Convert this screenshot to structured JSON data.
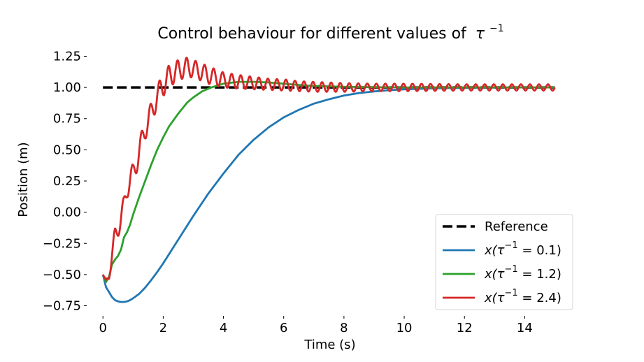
{
  "chart_data": {
    "type": "line",
    "title_prefix": "Control behaviour for different values of",
    "title_math_symbol": "τ",
    "title_math_exponent": "−1",
    "xlabel": "Time (s)",
    "ylabel": "Position (m)",
    "xlim": [
      -0.4,
      15.5
    ],
    "ylim": [
      -0.82,
      1.32
    ],
    "xticks": [
      0,
      2,
      4,
      6,
      8,
      10,
      12,
      14
    ],
    "xtick_labels": [
      "0",
      "2",
      "4",
      "6",
      "8",
      "10",
      "12",
      "14"
    ],
    "yticks": [
      -0.75,
      -0.5,
      -0.25,
      0.0,
      0.25,
      0.5,
      0.75,
      1.0,
      1.25
    ],
    "ytick_labels": [
      "−0.75",
      "−0.50",
      "−0.25",
      "0.00",
      "0.25",
      "0.50",
      "0.75",
      "1.00",
      "1.25"
    ],
    "grid": false,
    "legend_position": "bottom-right",
    "series": [
      {
        "name": "Reference",
        "style": "dashed",
        "color": "#000000",
        "x": [
          0,
          15
        ],
        "y": [
          1.0,
          1.0
        ]
      },
      {
        "name": "x(τ⁻¹ = 0.1)",
        "name_parts": {
          "pre": "x(τ",
          "sup": "−1",
          "post": " = 0.1)"
        },
        "style": "solid",
        "color": "#1f77b4",
        "x": [
          0,
          0.1,
          0.2,
          0.3,
          0.4,
          0.5,
          0.6,
          0.7,
          0.8,
          0.9,
          1.0,
          1.2,
          1.4,
          1.6,
          1.8,
          2.0,
          2.5,
          3.0,
          3.5,
          4.0,
          4.5,
          5.0,
          5.5,
          6.0,
          6.5,
          7.0,
          7.5,
          8.0,
          8.5,
          9.0,
          9.5,
          10.0,
          11.0,
          12.0,
          13.0,
          14.0,
          15.0
        ],
        "y": [
          -0.5,
          -0.6,
          -0.64,
          -0.68,
          -0.705,
          -0.715,
          -0.72,
          -0.72,
          -0.715,
          -0.705,
          -0.69,
          -0.655,
          -0.605,
          -0.545,
          -0.48,
          -0.41,
          -0.22,
          -0.03,
          0.15,
          0.31,
          0.46,
          0.58,
          0.68,
          0.76,
          0.82,
          0.87,
          0.905,
          0.935,
          0.955,
          0.968,
          0.978,
          0.985,
          0.993,
          0.997,
          0.999,
          1.0,
          1.0
        ]
      },
      {
        "name": "x(τ⁻¹ = 1.2)",
        "name_parts": {
          "pre": "x(τ",
          "sup": "−1",
          "post": " = 1.2)"
        },
        "style": "solid",
        "color": "#2ca02c",
        "x": [
          0,
          0.1,
          0.2,
          0.3,
          0.4,
          0.5,
          0.6,
          0.7,
          0.8,
          0.9,
          1.0,
          1.2,
          1.4,
          1.6,
          1.8,
          2.0,
          2.2,
          2.5,
          2.8,
          3.0,
          3.3,
          3.6,
          4.0,
          4.5,
          5.0,
          5.5,
          6.0,
          6.5,
          7.0,
          8.0,
          9.0,
          10.0,
          12.0,
          15.0
        ],
        "y": [
          -0.5,
          -0.56,
          -0.52,
          -0.42,
          -0.38,
          -0.35,
          -0.3,
          -0.2,
          -0.16,
          -0.1,
          -0.02,
          0.12,
          0.25,
          0.38,
          0.5,
          0.6,
          0.69,
          0.79,
          0.88,
          0.92,
          0.97,
          1.0,
          1.03,
          1.045,
          1.045,
          1.04,
          1.03,
          1.02,
          1.012,
          1.005,
          1.002,
          1.0,
          1.0,
          1.0
        ]
      },
      {
        "name": "x(τ⁻¹ = 2.4)",
        "name_parts": {
          "pre": "x(τ",
          "sup": "−1",
          "post": " = 2.4)"
        },
        "style": "solid",
        "color": "#d62728",
        "oscillation_period_s": 0.3,
        "x": [
          0,
          0.1,
          0.2,
          0.3,
          0.4,
          0.5,
          0.6,
          0.7,
          0.8,
          0.9,
          1.0,
          1.2,
          1.4,
          1.6,
          1.8,
          2.0,
          2.2,
          2.5,
          2.8,
          3.0,
          3.3,
          3.6,
          4.0,
          4.5,
          5.0,
          5.5,
          6.0,
          6.5,
          7.0,
          8.0,
          9.0,
          10.0,
          12.0,
          15.0
        ],
        "y": [
          -0.5,
          -0.56,
          -0.5,
          -0.35,
          -0.2,
          -0.12,
          -0.05,
          0.05,
          0.2,
          0.26,
          0.3,
          0.48,
          0.67,
          0.79,
          0.93,
          1.02,
          1.09,
          1.14,
          1.16,
          1.15,
          1.12,
          1.09,
          1.06,
          1.045,
          1.035,
          1.025,
          1.02,
          1.01,
          1.005,
          1.0,
          1.0,
          1.0,
          1.0,
          1.0
        ],
        "amplitude": [
          0.0,
          0.02,
          0.04,
          0.06,
          0.08,
          0.08,
          0.08,
          0.08,
          0.09,
          0.09,
          0.09,
          0.09,
          0.09,
          0.09,
          0.09,
          0.09,
          0.09,
          0.08,
          0.08,
          0.07,
          0.07,
          0.07,
          0.06,
          0.055,
          0.05,
          0.045,
          0.045,
          0.04,
          0.04,
          0.035,
          0.03,
          0.03,
          0.025,
          0.025
        ]
      }
    ]
  }
}
